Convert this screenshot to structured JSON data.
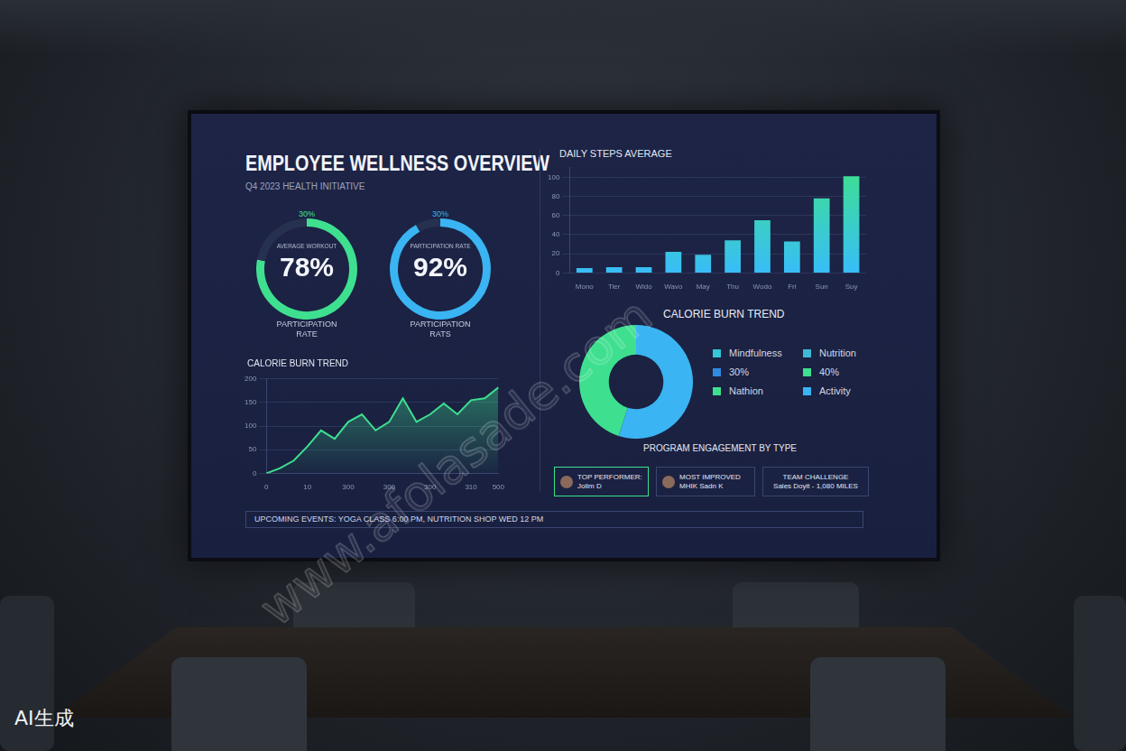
{
  "header": {
    "title": "EMPLOYEE WELLNESS OVERVIEW",
    "subtitle": "Q4 2023 HEALTH INITIATIVE"
  },
  "chart_data": [
    {
      "type": "gauge",
      "title": "PARTICIPATION RATE",
      "subtitle": "AVERAGE WORKOUT",
      "annotations": [
        "30%"
      ],
      "values": [
        78
      ],
      "value_labels": [
        "78%"
      ],
      "ylim": [
        0,
        100
      ],
      "color": "#3ee08f"
    },
    {
      "type": "gauge",
      "title": "PARTICIPATION RATS",
      "subtitle": "PARTICIPATION RATE",
      "annotations": [
        "30%"
      ],
      "values": [
        92
      ],
      "value_labels": [
        "92%"
      ],
      "ylim": [
        0,
        100
      ],
      "color": "#3ab4f2"
    },
    {
      "type": "bar",
      "title": "DAILY STEPS AVERAGE",
      "categories": [
        "Mono",
        "Tier",
        "Wido",
        "Wavo",
        "May",
        "Thu",
        "Wodo",
        "Fri",
        "Sun",
        "Suy"
      ],
      "values": [
        5,
        6,
        6,
        22,
        19,
        34,
        55,
        33,
        78,
        101
      ],
      "color": "#3ee08f",
      "ylim": [
        0,
        110
      ],
      "yticks": [
        0,
        20,
        40,
        60,
        80,
        100
      ],
      "grid": true
    },
    {
      "type": "line",
      "title": "CALORIE BURN TREND",
      "categories": [
        "0",
        null,
        null,
        "10",
        null,
        null,
        "300",
        null,
        null,
        "300",
        null,
        null,
        "300",
        null,
        null,
        "310",
        null,
        "500"
      ],
      "values": [
        0,
        11,
        27,
        57,
        91,
        73,
        109,
        125,
        91,
        109,
        159,
        109,
        125,
        148,
        125,
        155,
        159,
        182
      ],
      "color": "#3ee08f",
      "ylim": [
        0,
        200
      ],
      "yticks": [
        0,
        50,
        100,
        150,
        200
      ],
      "grid": true
    },
    {
      "type": "doughnut",
      "title": "CALORIE BURN TREND",
      "subtitle": "PROGRAM ENGAGEMENT BY TYPE",
      "categories": [
        null,
        null
      ],
      "values": [
        55,
        45
      ],
      "colors": [
        "#3ab4f2",
        "#3ee08f"
      ],
      "annotations": [
        {
          "text": "Mindfulness",
          "color": "#35c6d8"
        },
        {
          "text": "Nutrition",
          "color": "#3dbbd9"
        },
        {
          "text": "30%",
          "color": "#2f8be0"
        },
        {
          "text": "40%",
          "color": "#3ee08f"
        },
        {
          "text": "Nathion",
          "color": "#3ee08f"
        },
        {
          "text": "Activity",
          "color": "#3ab4f2"
        }
      ]
    }
  ],
  "cards": [
    {
      "title": "TOP PERFORMER:",
      "name": "Jolim D"
    },
    {
      "title": "MOST IMPROVED",
      "name": "MHIK  Sadn K"
    },
    {
      "title": "TEAM CHALLENGE",
      "name": "Sales Doyit - 1,080 MILES"
    }
  ],
  "events": "UPCOMING EVENTS: YOGA CLASS 6:00 PM, NUTRITION SHOP WED 12 PM",
  "watermark": "www.afolasade.com",
  "badge": "AI生成"
}
